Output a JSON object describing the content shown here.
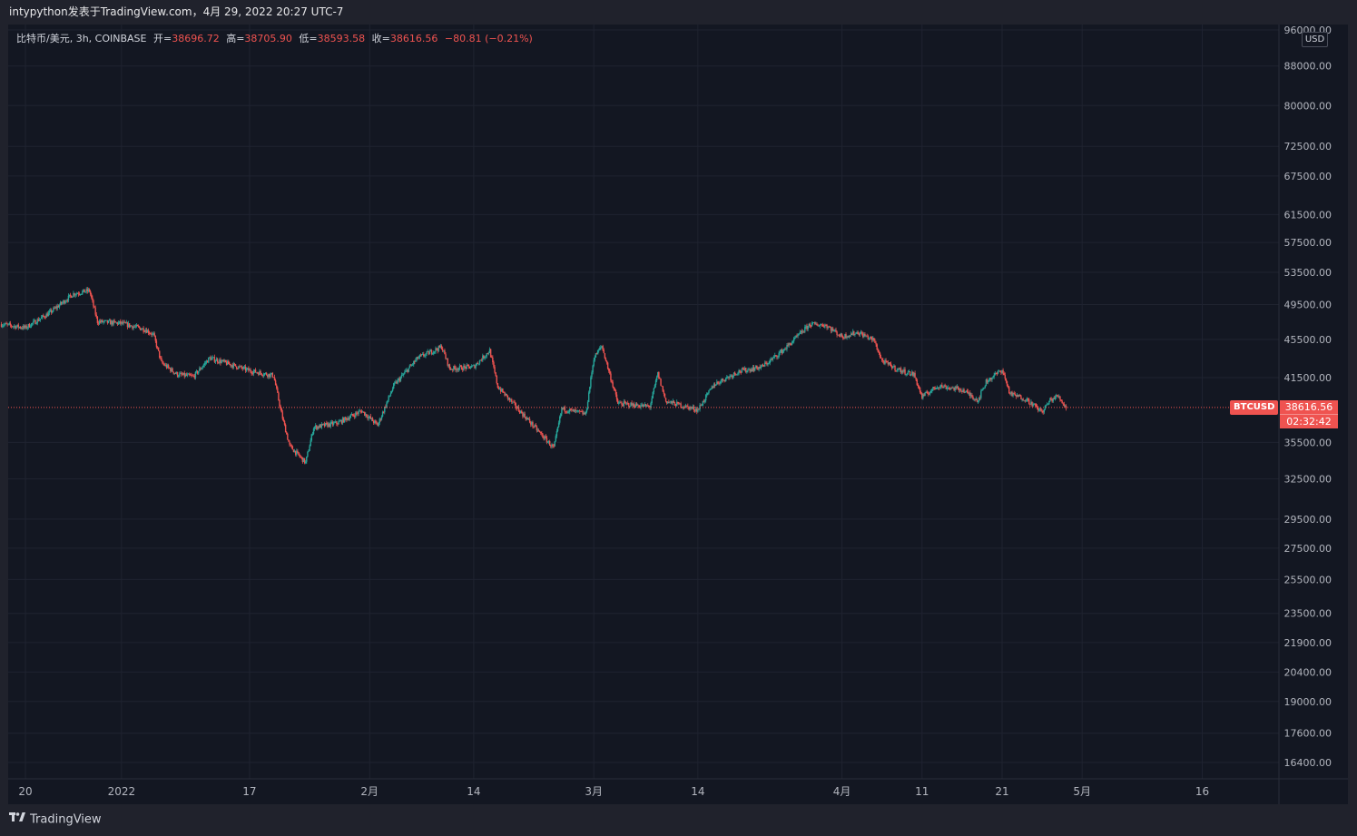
{
  "header": {
    "publisher_line": "intypython发表于TradingView.com，4月 29, 2022 20:27 UTC-7"
  },
  "legend": {
    "symbol_line": "比特币/美元, 3h, COINBASE",
    "open_label": "开=",
    "open_value": "38696.72",
    "high_label": "高=",
    "high_value": "38705.90",
    "low_label": "低=",
    "low_value": "38593.58",
    "close_label": "收=",
    "close_value": "38616.56",
    "change": "−80.81 (−0.21%)"
  },
  "price_scale": {
    "currency": "USD",
    "ticks": [
      "96000.00",
      "88000.00",
      "80000.00",
      "72500.00",
      "67500.00",
      "61500.00",
      "57500.00",
      "53500.00",
      "49500.00",
      "45500.00",
      "41500.00",
      "35500.00",
      "32500.00",
      "29500.00",
      "27500.00",
      "25500.00",
      "23500.00",
      "21900.00",
      "20400.00",
      "19000.00",
      "17600.00",
      "16400.00"
    ]
  },
  "time_scale": {
    "ticks": [
      "20",
      "2022",
      "17",
      "2月",
      "14",
      "3月",
      "14",
      "4月",
      "11",
      "21",
      "5月",
      "16"
    ]
  },
  "last_price": {
    "symbol": "BTCUSD",
    "price": "38616.56",
    "countdown": "02:32:42"
  },
  "footer": {
    "brand": "TradingView"
  },
  "colors": {
    "up": "#26a69a",
    "down": "#ef5350",
    "background": "#131722",
    "grid": "#1f2330",
    "axis_text": "#b2b5be"
  },
  "chart_data": {
    "type": "candlestick",
    "title": "比特币/美元, 3h, COINBASE",
    "y_scale": "log",
    "y_range": [
      16400,
      96000
    ],
    "x_range": [
      "2021-12-17",
      "2022-05-20"
    ],
    "close_path": [
      {
        "date": "2021-12-17",
        "price": 47200
      },
      {
        "date": "2021-12-20",
        "price": 46800
      },
      {
        "date": "2021-12-23",
        "price": 48500
      },
      {
        "date": "2021-12-26",
        "price": 50800
      },
      {
        "date": "2021-12-28",
        "price": 51200
      },
      {
        "date": "2021-12-29",
        "price": 47500
      },
      {
        "date": "2022-01-01",
        "price": 47300
      },
      {
        "date": "2022-01-04",
        "price": 46600
      },
      {
        "date": "2022-01-05",
        "price": 46000
      },
      {
        "date": "2022-01-06",
        "price": 43000
      },
      {
        "date": "2022-01-08",
        "price": 41800
      },
      {
        "date": "2022-01-10",
        "price": 41600
      },
      {
        "date": "2022-01-12",
        "price": 43500
      },
      {
        "date": "2022-01-14",
        "price": 43000
      },
      {
        "date": "2022-01-17",
        "price": 42200
      },
      {
        "date": "2022-01-20",
        "price": 41700
      },
      {
        "date": "2022-01-21",
        "price": 38000
      },
      {
        "date": "2022-01-22",
        "price": 35200
      },
      {
        "date": "2022-01-24",
        "price": 33800
      },
      {
        "date": "2022-01-25",
        "price": 36800
      },
      {
        "date": "2022-01-28",
        "price": 37200
      },
      {
        "date": "2022-01-31",
        "price": 38300
      },
      {
        "date": "2022-02-02",
        "price": 37000
      },
      {
        "date": "2022-02-04",
        "price": 40700
      },
      {
        "date": "2022-02-07",
        "price": 43500
      },
      {
        "date": "2022-02-10",
        "price": 44700
      },
      {
        "date": "2022-02-11",
        "price": 42400
      },
      {
        "date": "2022-02-14",
        "price": 42600
      },
      {
        "date": "2022-02-16",
        "price": 44300
      },
      {
        "date": "2022-02-17",
        "price": 40600
      },
      {
        "date": "2022-02-21",
        "price": 37300
      },
      {
        "date": "2022-02-24",
        "price": 35000
      },
      {
        "date": "2022-02-25",
        "price": 38500
      },
      {
        "date": "2022-02-28",
        "price": 38000
      },
      {
        "date": "2022-03-01",
        "price": 43500
      },
      {
        "date": "2022-03-02",
        "price": 44800
      },
      {
        "date": "2022-03-04",
        "price": 39000
      },
      {
        "date": "2022-03-08",
        "price": 38700
      },
      {
        "date": "2022-03-09",
        "price": 41900
      },
      {
        "date": "2022-03-10",
        "price": 39200
      },
      {
        "date": "2022-03-14",
        "price": 38400
      },
      {
        "date": "2022-03-16",
        "price": 40800
      },
      {
        "date": "2022-03-19",
        "price": 42100
      },
      {
        "date": "2022-03-22",
        "price": 42600
      },
      {
        "date": "2022-03-23",
        "price": 43200
      },
      {
        "date": "2022-03-25",
        "price": 44600
      },
      {
        "date": "2022-03-28",
        "price": 47200
      },
      {
        "date": "2022-03-30",
        "price": 47100
      },
      {
        "date": "2022-04-01",
        "price": 45800
      },
      {
        "date": "2022-04-03",
        "price": 46300
      },
      {
        "date": "2022-04-05",
        "price": 45400
      },
      {
        "date": "2022-04-06",
        "price": 43200
      },
      {
        "date": "2022-04-08",
        "price": 42300
      },
      {
        "date": "2022-04-10",
        "price": 41800
      },
      {
        "date": "2022-04-11",
        "price": 39600
      },
      {
        "date": "2022-04-13",
        "price": 40700
      },
      {
        "date": "2022-04-16",
        "price": 40300
      },
      {
        "date": "2022-04-18",
        "price": 39300
      },
      {
        "date": "2022-04-19",
        "price": 41100
      },
      {
        "date": "2022-04-21",
        "price": 42300
      },
      {
        "date": "2022-04-22",
        "price": 39900
      },
      {
        "date": "2022-04-24",
        "price": 39400
      },
      {
        "date": "2022-04-26",
        "price": 38200
      },
      {
        "date": "2022-04-27",
        "price": 39300
      },
      {
        "date": "2022-04-28",
        "price": 39700
      },
      {
        "date": "2022-04-29",
        "price": 38616.56
      }
    ],
    "last_close": 38616.56
  }
}
